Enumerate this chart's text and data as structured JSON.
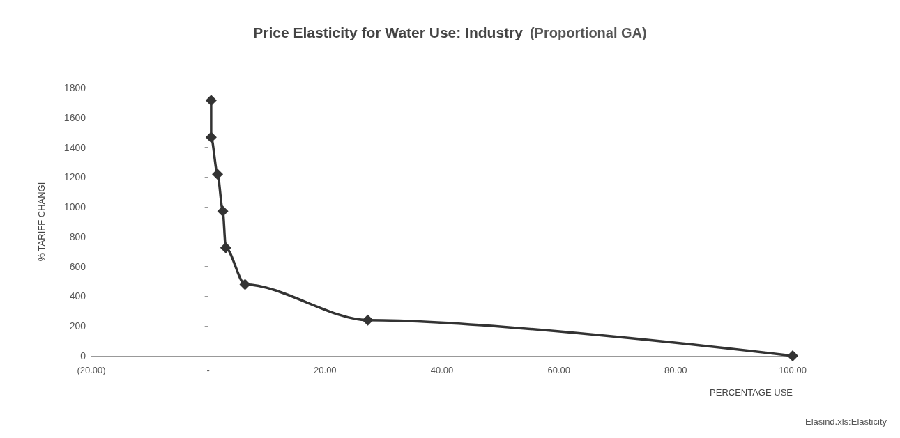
{
  "chart_data": {
    "type": "line",
    "title": "Price Elasticity for Water Use: Industry",
    "subtitle": "(Proportional GA)",
    "xlabel": "PERCENTAGE USE",
    "ylabel": "% TARIFF CHANGI",
    "annotations": [
      "Elasind.xls:Elasticity"
    ],
    "series": [
      {
        "color": "#333333",
        "x": [
          0.5,
          0.5,
          1.6,
          2.5,
          3,
          6.3,
          27.3,
          100
        ],
        "values": [
          1715,
          1467,
          1219,
          971,
          726,
          479,
          240,
          0
        ]
      }
    ],
    "xlim": [
      -20,
      100
    ],
    "xticks": [
      {
        "value": -20,
        "label": "(20.00)"
      },
      {
        "value": 0,
        "label": "-"
      },
      {
        "value": 20,
        "label": "20.00"
      },
      {
        "value": 40,
        "label": "40.00"
      },
      {
        "value": 60,
        "label": "60.00"
      },
      {
        "value": 80,
        "label": "80.00"
      },
      {
        "value": 100,
        "label": "100.00"
      }
    ],
    "ylim": [
      0,
      1800
    ],
    "yticks": [
      0,
      200,
      400,
      600,
      800,
      1000,
      1200,
      1400,
      1600,
      1800
    ],
    "marker": "diamond",
    "line_style": "solid"
  }
}
